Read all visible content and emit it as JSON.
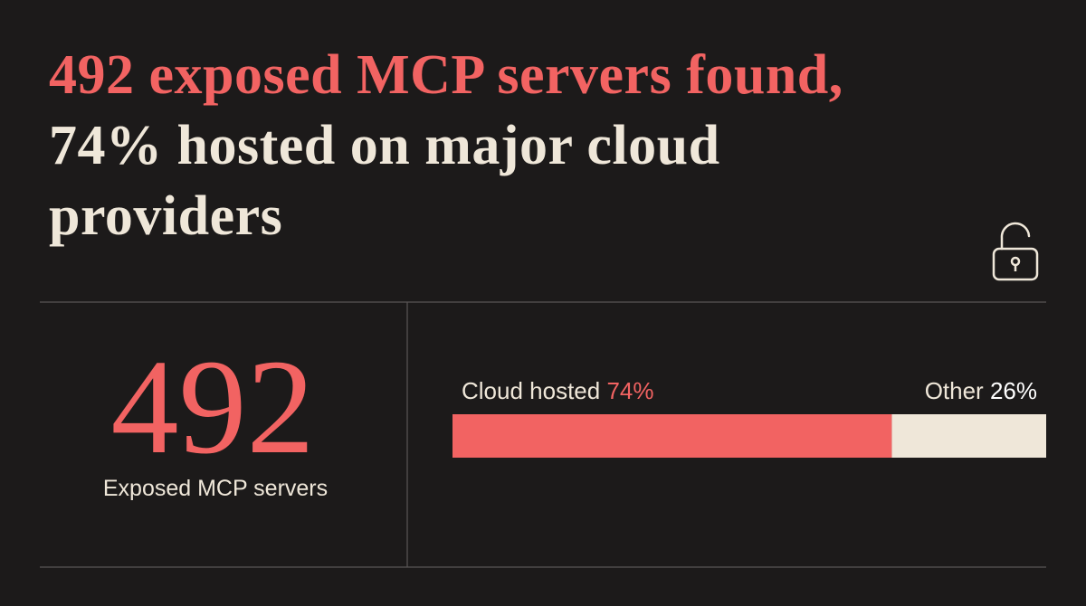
{
  "title": {
    "highlight": "492 exposed MCP servers found,",
    "rest": "74% hosted on major cloud providers"
  },
  "stat": {
    "value": 492,
    "label": "Exposed MCP servers"
  },
  "chart_data": {
    "type": "bar",
    "xlim": [
      0,
      100
    ],
    "series": [
      {
        "name": "Cloud hosted",
        "color": "#f26362",
        "values": [
          74
        ],
        "value_labels": [
          "74%"
        ]
      },
      {
        "name": "Other",
        "color": "#efe7d9",
        "values": [
          26
        ],
        "value_labels": [
          "26%"
        ]
      }
    ]
  }
}
